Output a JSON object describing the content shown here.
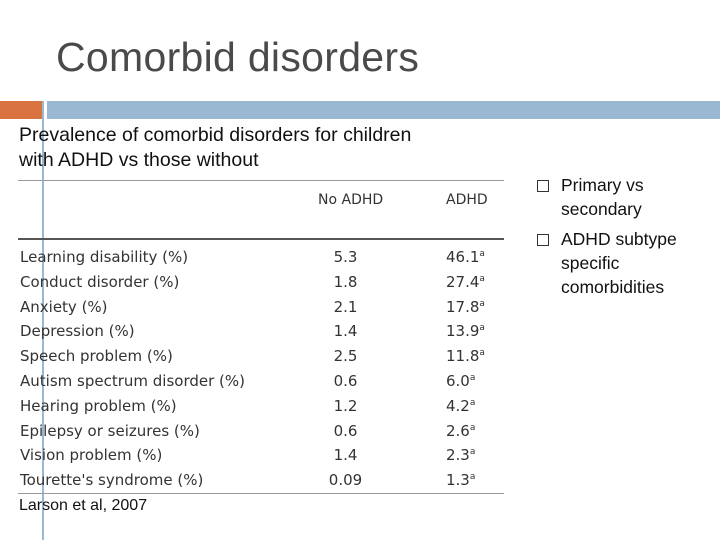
{
  "slide": {
    "title": "Comorbid disorders",
    "caption": "Prevalence of comorbid disorders for children with ADHD vs those without",
    "source": "Larson et al, 2007"
  },
  "table": {
    "headers": [
      "No ADHD",
      "ADHD"
    ],
    "rows": [
      {
        "condition": "Learning disability (%)",
        "no_adhd": "5.3",
        "adhd": "46.1",
        "mark": "a"
      },
      {
        "condition": "Conduct disorder (%)",
        "no_adhd": "1.8",
        "adhd": "27.4",
        "mark": "a"
      },
      {
        "condition": "Anxiety (%)",
        "no_adhd": "2.1",
        "adhd": "17.8",
        "mark": "a"
      },
      {
        "condition": "Depression (%)",
        "no_adhd": "1.4",
        "adhd": "13.9",
        "mark": "a"
      },
      {
        "condition": "Speech problem (%)",
        "no_adhd": "2.5",
        "adhd": "11.8",
        "mark": "a"
      },
      {
        "condition": "Autism spectrum disorder (%)",
        "no_adhd": "0.6",
        "adhd": "6.0",
        "mark": "a"
      },
      {
        "condition": "Hearing problem (%)",
        "no_adhd": "1.2",
        "adhd": "4.2",
        "mark": "a"
      },
      {
        "condition": "Epilepsy or seizures (%)",
        "no_adhd": "0.6",
        "adhd": "2.6",
        "mark": "a"
      },
      {
        "condition": "Vision problem (%)",
        "no_adhd": "1.4",
        "adhd": "2.3",
        "mark": "a"
      },
      {
        "condition": "Tourette's syndrome (%)",
        "no_adhd": "0.09",
        "adhd": "1.3",
        "mark": "a"
      }
    ]
  },
  "bullets": [
    "Primary vs secondary",
    "ADHD subtype specific comorbidities"
  ],
  "colors": {
    "accent_orange": "#d9733f",
    "accent_blue": "#9bb8d3",
    "title": "#4a4a4a"
  }
}
